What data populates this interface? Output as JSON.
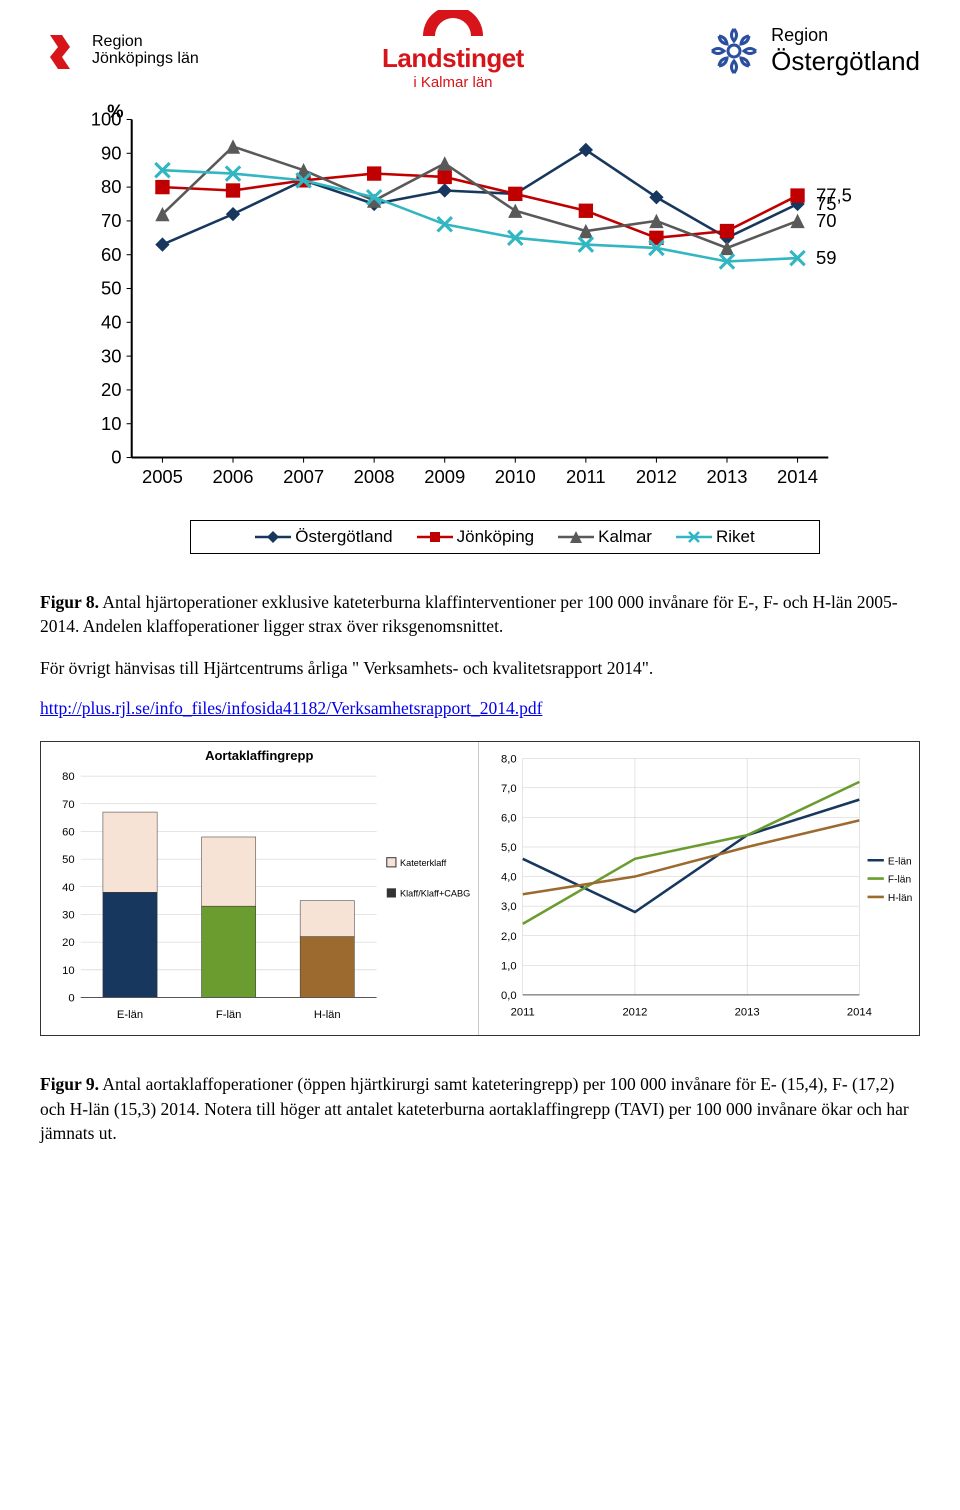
{
  "logos": {
    "jonkoping": {
      "line1": "Region",
      "line2": "Jönköpings län",
      "color": "#d7141a"
    },
    "kalmar": {
      "top": "Landstinget",
      "sub": "i Kalmar län",
      "color": "#d7141a"
    },
    "ostergotland": {
      "line1": "Region",
      "line2": "Östergötland",
      "color": "#2a4f9e"
    }
  },
  "chart1": {
    "y_label": "%",
    "ylim": [
      0,
      100
    ],
    "ytick_step": 10,
    "categories": [
      "2005",
      "2006",
      "2007",
      "2008",
      "2009",
      "2010",
      "2011",
      "2012",
      "2013",
      "2014"
    ],
    "series": [
      {
        "name": "Östergötland",
        "color": "#17375e",
        "marker": "diamond",
        "values": [
          63,
          72,
          82,
          75,
          79,
          78,
          91,
          77,
          65,
          75
        ],
        "end_label": "75"
      },
      {
        "name": "Jönköping",
        "color": "#c00000",
        "marker": "square",
        "values": [
          80,
          79,
          82,
          84,
          83,
          78,
          73,
          65,
          67,
          77.5
        ],
        "end_label": "77,5"
      },
      {
        "name": "Kalmar",
        "color": "#595959",
        "marker": "triangle",
        "values": [
          72,
          92,
          85,
          76,
          87,
          73,
          67,
          70,
          62,
          70
        ],
        "end_label": "70"
      },
      {
        "name": "Riket",
        "color": "#31b6c2",
        "marker": "x",
        "values": [
          85,
          84,
          82,
          77,
          69,
          65,
          63,
          62,
          58,
          59
        ],
        "end_label": "59"
      }
    ],
    "x_axis_tick_color": "#000000",
    "grid": false,
    "line_width": 2.5,
    "marker_size": 10
  },
  "caption1": {
    "fig": "Figur 8.",
    "text": " Antal hjärtoperationer exklusive kateterburna klaffinterventioner per 100 000 invånare för E-, F- och H-län 2005-2014. Andelen klaffoperationer ligger strax över riksgenomsnittet."
  },
  "ref_text": "För övrigt hänvisas till Hjärtcentrums årliga \" Verksamhets- och kvalitetsrapport 2014\".",
  "link": "http://plus.rjl.se/info_files/infosida41182/Verksamhetsrapport_2014.pdf",
  "chart2a": {
    "title": "Aortaklaffingrepp",
    "categories": [
      "E-län",
      "F-län",
      "H-län"
    ],
    "ylim": [
      0,
      80
    ],
    "ytick_step": 10,
    "stack_labels": [
      "Kateterklaff",
      "Klaff/Klaff+CABG"
    ],
    "stack_colors_top": "#f6e3d5",
    "colors_bottom": [
      "#17375e",
      "#6b9c2f",
      "#9c6a2e"
    ],
    "values_bottom": [
      38,
      33,
      22
    ],
    "values_top": [
      29,
      25,
      13
    ]
  },
  "chart2b": {
    "ylim": [
      0,
      8
    ],
    "ytick_step": 1,
    "categories": [
      "2011",
      "2012",
      "2013",
      "2014"
    ],
    "series": [
      {
        "name": "E-län",
        "color": "#17375e",
        "values": [
          4.6,
          2.8,
          5.4,
          6.6
        ]
      },
      {
        "name": "F-län",
        "color": "#6b9c2f",
        "values": [
          2.4,
          4.6,
          5.4,
          7.2
        ]
      },
      {
        "name": "H-län",
        "color": "#9c6a2e",
        "values": [
          3.4,
          4.0,
          5.0,
          5.9
        ]
      }
    ],
    "line_width": 2.5
  },
  "caption2": {
    "fig": "Figur 9.",
    "text": " Antal aortaklaffoperationer (öppen hjärtkirurgi samt kateteringrepp) per 100 000 invånare för E- (15,4), F- (17,2) och H-län (15,3) 2014. Notera till höger att antalet kateterburna aortaklaffingrepp (TAVI) per 100 000 invånare ökar och har jämnats ut."
  }
}
